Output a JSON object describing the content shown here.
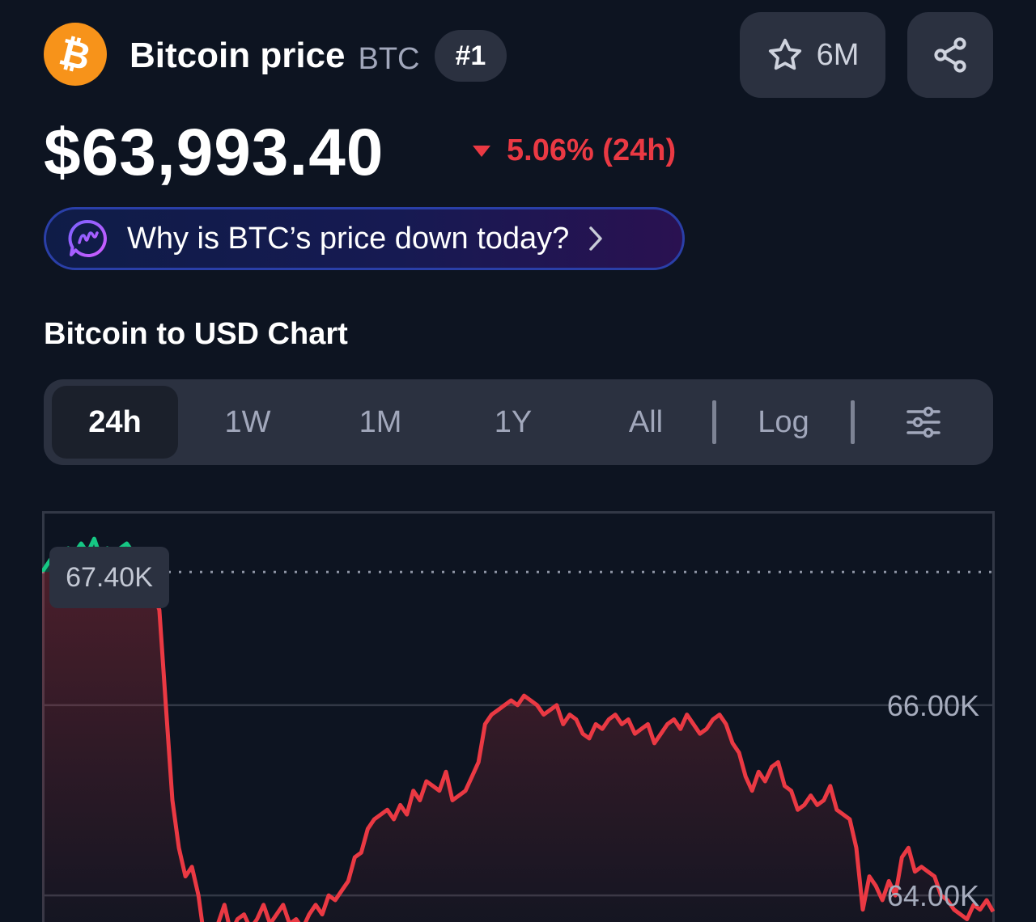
{
  "header": {
    "coin_name": "Bitcoin price",
    "symbol": "BTC",
    "rank": "#1",
    "watchlist_count": "6M",
    "logo_glyph": "₿",
    "logo_color": "#f7931a"
  },
  "price": {
    "value": "$63,993.40",
    "change": "5.06% (24h)",
    "direction": "down",
    "change_color": "#ea3943"
  },
  "ai_prompt": {
    "question": "Why is BTC’s price down today?"
  },
  "chart_section": {
    "title": "Bitcoin to USD Chart",
    "tabs": [
      {
        "label": "24h",
        "active": true
      },
      {
        "label": "1W",
        "active": false
      },
      {
        "label": "1M",
        "active": false
      },
      {
        "label": "1Y",
        "active": false
      },
      {
        "label": "All",
        "active": false
      },
      {
        "label": "Log",
        "active": false
      }
    ]
  },
  "chart_data": {
    "type": "line",
    "title": "",
    "xlabel": "",
    "ylabel": "",
    "start_price_label": "67.40K",
    "start_price": 67400,
    "y_ticks": [
      {
        "value": 66000,
        "label": "66.00K"
      },
      {
        "value": 64000,
        "label": "64.00K"
      }
    ],
    "ylim": [
      63720,
      68040
    ],
    "up_color": "#16c784",
    "down_color": "#ea3943",
    "series": [
      {
        "values": [
          67400,
          67500,
          67600,
          67550,
          67650,
          67600,
          67700,
          67600,
          67750,
          67550,
          67650,
          67500,
          67650,
          67700,
          67600,
          67500,
          67400,
          67200,
          67000,
          66000,
          65000,
          64500,
          64200,
          64300,
          64000,
          63500,
          63650,
          63700,
          63900,
          63600,
          63750,
          63800,
          63650,
          63750,
          63900,
          63700,
          63800,
          63900,
          63700,
          63750,
          63650,
          63800,
          63900,
          63800,
          64000,
          63950,
          64050,
          64150,
          64400,
          64450,
          64700,
          64800,
          64850,
          64900,
          64800,
          64950,
          64850,
          65100,
          65000,
          65200,
          65150,
          65100,
          65300,
          65000,
          65050,
          65100,
          65250,
          65400,
          65800,
          65900,
          65950,
          66000,
          66050,
          66000,
          66100,
          66050,
          66000,
          65900,
          65950,
          66000,
          65800,
          65900,
          65850,
          65700,
          65650,
          65800,
          65750,
          65850,
          65900,
          65800,
          65850,
          65700,
          65750,
          65800,
          65600,
          65700,
          65800,
          65850,
          65750,
          65900,
          65800,
          65700,
          65750,
          65850,
          65900,
          65800,
          65600,
          65500,
          65250,
          65100,
          65300,
          65200,
          65350,
          65400,
          65150,
          65100,
          64900,
          64950,
          65050,
          64950,
          65000,
          65150,
          64900,
          64850,
          64800,
          64500,
          63850,
          64200,
          64100,
          63950,
          64150,
          64000,
          64400,
          64500,
          64250,
          64300,
          64250,
          64200,
          64000,
          63950,
          63850,
          63800,
          63750,
          63900,
          63850,
          63950,
          63830
        ]
      }
    ]
  },
  "icons": {
    "star": "star-icon",
    "share": "share-icon",
    "ai": "ai-assistant-icon",
    "chevron": "chevron-right-icon",
    "settings": "sliders-icon",
    "down": "caret-down-icon"
  }
}
